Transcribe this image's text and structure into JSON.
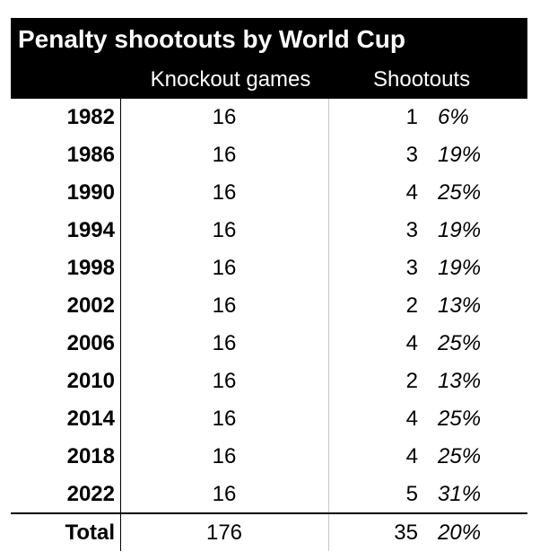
{
  "chart_data": {
    "type": "table",
    "title": "Penalty shootouts by World Cup",
    "columns": [
      "",
      "Knockout games",
      "Shootouts",
      ""
    ],
    "rows": [
      {
        "year": "1982",
        "games": "16",
        "shootouts": "1",
        "pct": "6%"
      },
      {
        "year": "1986",
        "games": "16",
        "shootouts": "3",
        "pct": "19%"
      },
      {
        "year": "1990",
        "games": "16",
        "shootouts": "4",
        "pct": "25%"
      },
      {
        "year": "1994",
        "games": "16",
        "shootouts": "3",
        "pct": "19%"
      },
      {
        "year": "1998",
        "games": "16",
        "shootouts": "3",
        "pct": "19%"
      },
      {
        "year": "2002",
        "games": "16",
        "shootouts": "2",
        "pct": "13%"
      },
      {
        "year": "2006",
        "games": "16",
        "shootouts": "4",
        "pct": "25%"
      },
      {
        "year": "2010",
        "games": "16",
        "shootouts": "2",
        "pct": "13%"
      },
      {
        "year": "2014",
        "games": "16",
        "shootouts": "4",
        "pct": "25%"
      },
      {
        "year": "2018",
        "games": "16",
        "shootouts": "4",
        "pct": "25%"
      },
      {
        "year": "2022",
        "games": "16",
        "shootouts": "5",
        "pct": "31%"
      }
    ],
    "total": {
      "label": "Total",
      "games": "176",
      "shootouts": "35",
      "pct": "20%"
    }
  },
  "colors": {
    "header_bg": "#000000",
    "header_text": "#ffffff",
    "divider_mid": "#c8c8c8"
  }
}
